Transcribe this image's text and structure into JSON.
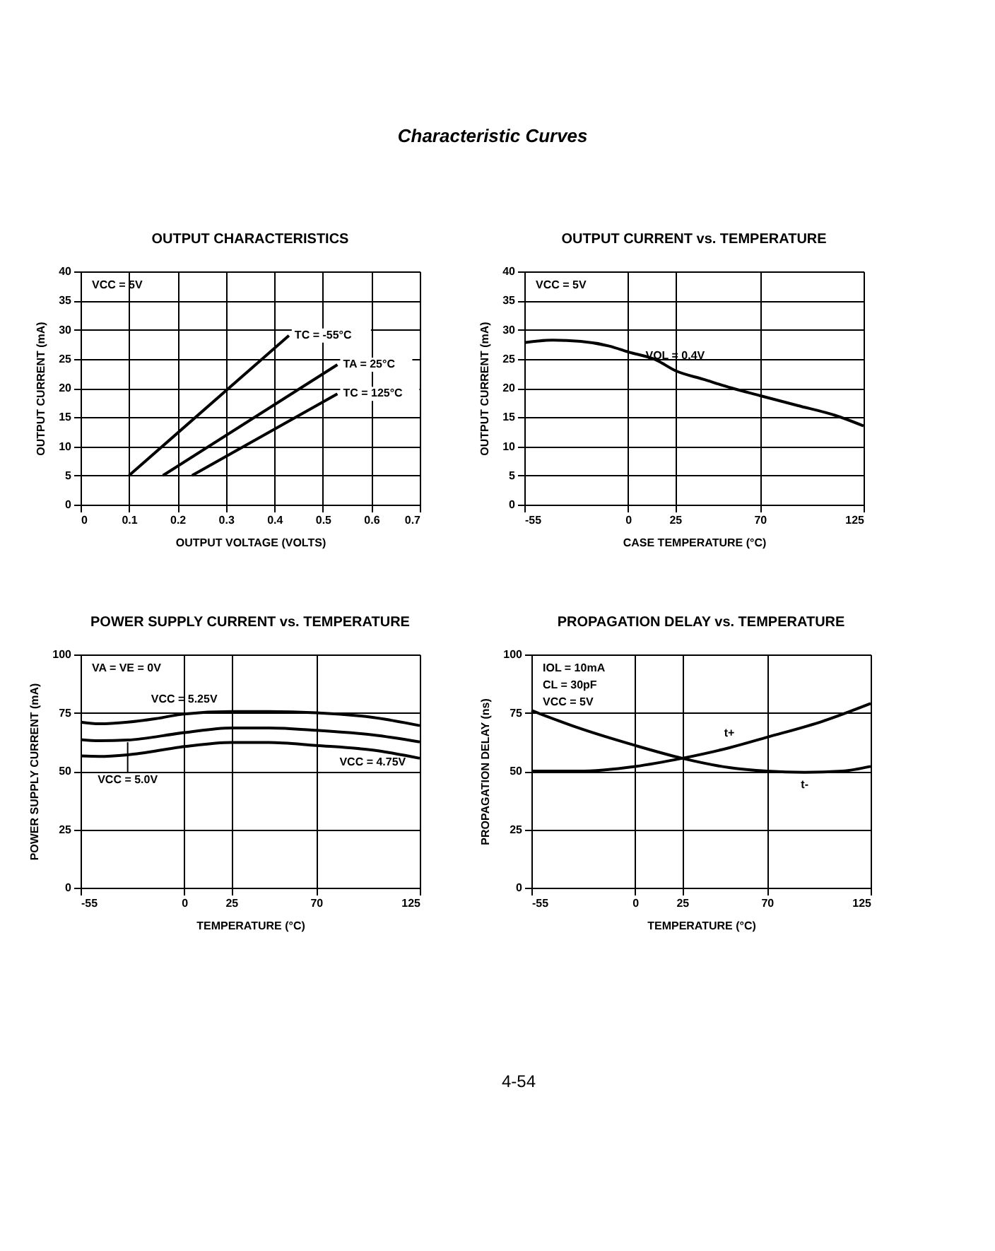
{
  "chart_data": [
    {
      "type": "line",
      "title": "OUTPUT CHARACTERISTICS",
      "xlabel": "OUTPUT VOLTAGE (VOLTS)",
      "ylabel": "OUTPUT CURRENT (mA)",
      "xlim": [
        0,
        0.7
      ],
      "xticks": [
        0,
        0.1,
        0.2,
        0.3,
        0.4,
        0.5,
        0.6,
        0.7
      ],
      "ylim": [
        0,
        40
      ],
      "yticks": [
        0,
        5,
        10,
        15,
        20,
        25,
        30,
        35,
        40
      ],
      "grid": true,
      "legend": false,
      "marker": "none",
      "line_style": "solid",
      "annotations": [
        "Characteristic Curves",
        "VCC = 5V"
      ],
      "series": [
        {
          "name": "TC = -55°C",
          "color": "#000000",
          "x": [
            0.1,
            0.43
          ],
          "values": [
            5,
            29
          ]
        },
        {
          "name": "TA = 25°C",
          "color": "#000000",
          "x": [
            0.17,
            0.53
          ],
          "values": [
            5,
            24
          ]
        },
        {
          "name": "TC = 125°C",
          "color": "#000000",
          "x": [
            0.23,
            0.53
          ],
          "values": [
            5,
            19
          ]
        }
      ]
    },
    {
      "type": "line",
      "title": "OUTPUT CURRENT vs. TEMPERATURE",
      "xlabel": "CASE TEMPERATURE (°C)",
      "ylabel": "OUTPUT CURRENT (mA)",
      "xlim": [
        -55,
        125
      ],
      "xticks": [
        -55,
        0,
        25,
        70,
        125
      ],
      "ylim": [
        0,
        40
      ],
      "yticks": [
        0,
        5,
        10,
        15,
        20,
        25,
        30,
        35,
        40
      ],
      "grid": true,
      "legend": false,
      "marker": "none",
      "line_style": "solid",
      "annotations": [
        "VCC = 5V"
      ],
      "series": [
        {
          "name": "VOL = 0.4V",
          "color": "#000000",
          "x": [
            -55,
            -40,
            -25,
            -10,
            0,
            15,
            25,
            40,
            55,
            70,
            90,
            110,
            125
          ],
          "values": [
            27.8,
            28.2,
            28,
            27.2,
            26.2,
            24.8,
            23,
            21.5,
            20,
            18.7,
            17,
            15.3,
            13.5
          ]
        }
      ]
    },
    {
      "type": "line",
      "title": "POWER SUPPLY CURRENT vs. TEMPERATURE",
      "xlabel": "TEMPERATURE (°C)",
      "ylabel": "POWER SUPPLY CURRENT (mA)",
      "xlim": [
        -55,
        125
      ],
      "xticks": [
        -55,
        0,
        25,
        70,
        125
      ],
      "ylim": [
        0,
        100
      ],
      "yticks": [
        0,
        25,
        50,
        75,
        100
      ],
      "grid": true,
      "legend": false,
      "marker": "none",
      "line_style": "solid",
      "annotations": [
        "VA = VE = 0V"
      ],
      "series": [
        {
          "name": "VCC = 5.25V",
          "color": "#000000",
          "x": [
            -55,
            -45,
            -30,
            -15,
            0,
            25,
            45,
            70,
            100,
            125
          ],
          "values": [
            71,
            70.3,
            71,
            72.5,
            74.5,
            75.5,
            75.5,
            75,
            73,
            69.5
          ]
        },
        {
          "name": "VCC = 5.0V",
          "color": "#000000",
          "x": [
            -55,
            -45,
            -30,
            0,
            25,
            45,
            70,
            100,
            125
          ],
          "values": [
            63.5,
            63,
            63.3,
            66.5,
            68.5,
            68.5,
            67.5,
            65.5,
            62.5
          ]
        },
        {
          "name": "VCC = 4.75V",
          "color": "#000000",
          "x": [
            -55,
            -45,
            -30,
            0,
            25,
            45,
            70,
            100,
            125
          ],
          "values": [
            56.5,
            56.3,
            57,
            60.5,
            62.3,
            62.3,
            61,
            59,
            55.5
          ]
        }
      ]
    },
    {
      "type": "line",
      "title": "PROPAGATION DELAY vs. TEMPERATURE",
      "xlabel": "TEMPERATURE (°C)",
      "ylabel": "PROPAGATION DELAY (ns)",
      "xlim": [
        -55,
        125
      ],
      "xticks": [
        -55,
        0,
        25,
        70,
        125
      ],
      "ylim": [
        0,
        100
      ],
      "yticks": [
        0,
        25,
        50,
        75,
        100
      ],
      "grid": true,
      "legend": false,
      "marker": "none",
      "line_style": "solid",
      "annotations": [
        "IOL = 10mA",
        "CL = 30pF",
        "VCC = 5V",
        "4-54"
      ],
      "series": [
        {
          "name": "t+",
          "color": "#000000",
          "x": [
            -55,
            -30,
            0,
            25,
            50,
            70,
            100,
            125
          ],
          "values": [
            50,
            50,
            52,
            55.5,
            60,
            64.5,
            71.5,
            79
          ]
        },
        {
          "name": "t-",
          "color": "#000000",
          "x": [
            -55,
            -30,
            0,
            25,
            50,
            70,
            90,
            110,
            125
          ],
          "values": [
            76,
            68.5,
            61,
            55.5,
            51.5,
            50,
            49.5,
            50,
            52
          ]
        }
      ]
    }
  ]
}
